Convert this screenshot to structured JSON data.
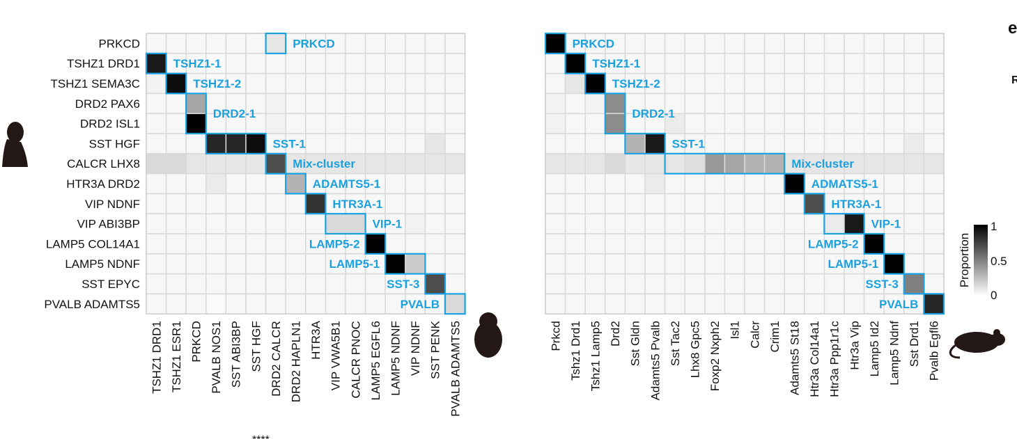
{
  "panel_letter": "e",
  "edge_letter": "R",
  "edge_stars": "****",
  "legend": {
    "title": "Proportion",
    "ticks": [
      "1",
      "0.5",
      "0"
    ]
  },
  "colors": {
    "cluster_box": "#1ba0e0",
    "grid": "#d9d9d9",
    "high": "#000000",
    "low": "#ffffff"
  },
  "icons": {
    "left_panel": "human-silhouette-icon",
    "middle": "monkey-silhouette-icon",
    "right_panel": "mouse-silhouette-icon"
  },
  "chart_data": [
    {
      "type": "heatmap",
      "scale": [
        0,
        1
      ],
      "rows": [
        "PRKCD",
        "TSHZ1 DRD1",
        "TSHZ1 SEMA3C",
        "DRD2 PAX6",
        "DRD2 ISL1",
        "SST HGF",
        "CALCR LHX8",
        "HTR3A DRD2",
        "VIP NDNF",
        "VIP ABI3BP",
        "LAMP5 COL14A1",
        "LAMP5 NDNF",
        "SST EPYC",
        "PVALB ADAMTS5"
      ],
      "columns": [
        "TSHZ1 DRD1",
        "TSHZ1 ESR1",
        "PRKCD",
        "PVALB NOS1",
        "SST ABI3BP",
        "SST HGF",
        "DRD2 CALCR",
        "DRD2 HAPLN1",
        "HTR3A",
        "VIP VWA5B1",
        "CALCR PNOC",
        "LAMP5 EGFL6",
        "LAMP5 NDNF",
        "VIP NDNF",
        "SST PENK",
        "PVALB ADAMTS5"
      ],
      "values": [
        [
          0,
          0,
          0,
          0,
          0,
          0,
          0.1,
          0,
          0,
          0,
          0,
          0,
          0,
          0,
          0,
          0
        ],
        [
          0.9,
          0.03,
          0.03,
          0.02,
          0,
          0,
          0,
          0,
          0,
          0,
          0,
          0,
          0,
          0,
          0,
          0
        ],
        [
          0.05,
          0.95,
          0.03,
          0.02,
          0,
          0,
          0,
          0,
          0,
          0,
          0,
          0,
          0,
          0,
          0,
          0
        ],
        [
          0,
          0,
          0.35,
          0,
          0,
          0,
          0.05,
          0,
          0,
          0,
          0,
          0,
          0,
          0,
          0,
          0
        ],
        [
          0,
          0,
          1,
          0,
          0,
          0,
          0.05,
          0,
          0,
          0,
          0,
          0,
          0,
          0,
          0,
          0
        ],
        [
          0,
          0,
          0,
          0.85,
          0.85,
          0.95,
          0,
          0,
          0,
          0,
          0,
          0,
          0,
          0,
          0.1,
          0
        ],
        [
          0.15,
          0.15,
          0.1,
          0.1,
          0.1,
          0.1,
          0.7,
          0.1,
          0.1,
          0.1,
          0.1,
          0.1,
          0.1,
          0.1,
          0.1,
          0.1
        ],
        [
          0,
          0,
          0,
          0.08,
          0,
          0,
          0,
          0.3,
          0,
          0,
          0,
          0,
          0,
          0,
          0,
          0
        ],
        [
          0,
          0,
          0,
          0,
          0,
          0,
          0,
          0,
          0.8,
          0,
          0,
          0,
          0,
          0,
          0,
          0
        ],
        [
          0,
          0,
          0,
          0,
          0,
          0,
          0,
          0,
          0,
          0.15,
          0.15,
          0,
          0,
          0.05,
          0,
          0
        ],
        [
          0,
          0,
          0,
          0,
          0,
          0,
          0,
          0,
          0,
          0,
          0,
          1,
          0,
          0,
          0,
          0
        ],
        [
          0,
          0,
          0,
          0,
          0,
          0,
          0,
          0,
          0,
          0,
          0,
          0,
          1,
          0.2,
          0,
          0
        ],
        [
          0,
          0,
          0,
          0,
          0.03,
          0,
          0,
          0,
          0,
          0,
          0,
          0,
          0,
          0,
          0.7,
          0
        ],
        [
          0,
          0,
          0,
          0.02,
          0,
          0,
          0,
          0,
          0,
          0,
          0,
          0,
          0,
          0,
          0,
          0.15
        ]
      ],
      "clusters": [
        {
          "label": "PRKCD",
          "r": [
            0,
            0
          ],
          "c": [
            6,
            6
          ]
        },
        {
          "label": "TSHZ1-1",
          "r": [
            1,
            1
          ],
          "c": [
            0,
            0
          ]
        },
        {
          "label": "TSHZ1-2",
          "r": [
            2,
            2
          ],
          "c": [
            1,
            1
          ]
        },
        {
          "label": "DRD2-1",
          "r": [
            3,
            4
          ],
          "c": [
            2,
            2
          ]
        },
        {
          "label": "SST-1",
          "r": [
            5,
            5
          ],
          "c": [
            3,
            5
          ]
        },
        {
          "label": "Mix-cluster",
          "r": [
            6,
            6
          ],
          "c": [
            6,
            6
          ]
        },
        {
          "label": "ADAMTS5-1",
          "r": [
            7,
            7
          ],
          "c": [
            7,
            7
          ]
        },
        {
          "label": "HTR3A-1",
          "r": [
            8,
            8
          ],
          "c": [
            8,
            8
          ]
        },
        {
          "label": "VIP-1",
          "r": [
            9,
            9
          ],
          "c": [
            9,
            10
          ]
        },
        {
          "label": "LAMP5-2",
          "r": [
            10,
            10
          ],
          "c": [
            11,
            11
          ]
        },
        {
          "label": "LAMP5-1",
          "r": [
            11,
            11
          ],
          "c": [
            12,
            13
          ]
        },
        {
          "label": "SST-3",
          "r": [
            12,
            12
          ],
          "c": [
            14,
            14
          ]
        },
        {
          "label": "PVALB",
          "r": [
            13,
            13
          ],
          "c": [
            15,
            15
          ]
        }
      ]
    },
    {
      "type": "heatmap",
      "scale": [
        0,
        1
      ],
      "rows": [
        "PRKCD",
        "TSHZ1 DRD1",
        "TSHZ1 SEMA3C",
        "DRD2 PAX6",
        "DRD2 ISL1",
        "SST HGF",
        "CALCR LHX8",
        "HTR3A DRD2",
        "VIP NDNF",
        "VIP ABI3BP",
        "LAMP5 COL14A1",
        "LAMP5 NDNF",
        "SST EPYC",
        "PVALB ADAMTS5"
      ],
      "columns": [
        "Prkcd",
        "Tshz1 Drd1",
        "Tshz1 Lamp5",
        "Drd2",
        "Sst Gldn",
        "Adamts5 Pvalb",
        "Sst Tac2",
        "Lhx8 Gpc5",
        "Foxp2 Nxph2",
        "Isl1",
        "Calcr",
        "Crim1",
        "Adamts5 St18",
        "Htr3a Col14a1",
        "Htr3a Ppp1r1c",
        "Htr3a Vip",
        "Lamp5 Id2",
        "Lamp5 Ndnf",
        "Sst Drd1",
        "Pvalb Egfl6"
      ],
      "values": [
        [
          1,
          0,
          0,
          0,
          0,
          0,
          0,
          0,
          0,
          0,
          0,
          0,
          0,
          0,
          0,
          0,
          0,
          0,
          0,
          0
        ],
        [
          0,
          1,
          0,
          0,
          0,
          0,
          0,
          0,
          0,
          0,
          0,
          0,
          0,
          0,
          0,
          0,
          0,
          0,
          0,
          0
        ],
        [
          0,
          0.1,
          1,
          0,
          0,
          0,
          0,
          0,
          0,
          0,
          0,
          0,
          0,
          0,
          0,
          0,
          0,
          0,
          0,
          0
        ],
        [
          0.05,
          0.03,
          0.05,
          0.45,
          0,
          0,
          0,
          0,
          0,
          0,
          0,
          0,
          0,
          0,
          0,
          0,
          0,
          0,
          0,
          0
        ],
        [
          0.05,
          0.03,
          0.03,
          0.45,
          0,
          0,
          0.08,
          0,
          0,
          0,
          0,
          0,
          0,
          0,
          0,
          0,
          0,
          0,
          0,
          0
        ],
        [
          0,
          0,
          0,
          0,
          0.3,
          0.9,
          0,
          0,
          0,
          0,
          0,
          0,
          0,
          0,
          0,
          0,
          0,
          0,
          0.08,
          0
        ],
        [
          0.1,
          0.1,
          0.1,
          0.15,
          0.1,
          0.1,
          0.1,
          0.12,
          0.4,
          0.35,
          0.3,
          0.3,
          0.1,
          0.1,
          0.1,
          0.1,
          0.1,
          0.1,
          0.1,
          0.1
        ],
        [
          0,
          0,
          0,
          0,
          0,
          0.08,
          0,
          0,
          0,
          0,
          0,
          0,
          1,
          0,
          0,
          0,
          0,
          0,
          0,
          0
        ],
        [
          0,
          0,
          0,
          0,
          0,
          0,
          0,
          0,
          0,
          0,
          0,
          0,
          0,
          0.7,
          0,
          0,
          0,
          0,
          0,
          0
        ],
        [
          0,
          0,
          0,
          0,
          0,
          0,
          0,
          0,
          0,
          0,
          0,
          0,
          0,
          0,
          0.08,
          0.9,
          0,
          0,
          0,
          0
        ],
        [
          0,
          0,
          0,
          0,
          0,
          0,
          0,
          0,
          0,
          0,
          0,
          0,
          0,
          0,
          0,
          0,
          1,
          0,
          0,
          0
        ],
        [
          0,
          0,
          0,
          0,
          0,
          0,
          0,
          0,
          0,
          0,
          0,
          0,
          0,
          0,
          0,
          0,
          0,
          1,
          0,
          0
        ],
        [
          0,
          0,
          0,
          0,
          0.03,
          0,
          0,
          0,
          0,
          0,
          0,
          0,
          0,
          0,
          0,
          0,
          0,
          0,
          0.5,
          0
        ],
        [
          0,
          0,
          0,
          0,
          0,
          0,
          0,
          0,
          0,
          0,
          0,
          0,
          0,
          0,
          0,
          0,
          0,
          0,
          0,
          0.85
        ]
      ],
      "clusters": [
        {
          "label": "PRKCD",
          "r": [
            0,
            0
          ],
          "c": [
            0,
            0
          ]
        },
        {
          "label": "TSHZ1-1",
          "r": [
            1,
            1
          ],
          "c": [
            1,
            1
          ]
        },
        {
          "label": "TSHZ1-2",
          "r": [
            2,
            2
          ],
          "c": [
            2,
            2
          ]
        },
        {
          "label": "DRD2-1",
          "r": [
            3,
            4
          ],
          "c": [
            3,
            3
          ]
        },
        {
          "label": "SST-1",
          "r": [
            5,
            5
          ],
          "c": [
            4,
            5
          ]
        },
        {
          "label": "Mix-cluster",
          "r": [
            6,
            6
          ],
          "c": [
            6,
            11
          ]
        },
        {
          "label": "ADMATS5-1",
          "r": [
            7,
            7
          ],
          "c": [
            12,
            12
          ]
        },
        {
          "label": "HTR3A-1",
          "r": [
            8,
            8
          ],
          "c": [
            13,
            13
          ]
        },
        {
          "label": "VIP-1",
          "r": [
            9,
            9
          ],
          "c": [
            14,
            15
          ]
        },
        {
          "label": "LAMP5-2",
          "r": [
            10,
            10
          ],
          "c": [
            16,
            16
          ]
        },
        {
          "label": "LAMP5-1",
          "r": [
            11,
            11
          ],
          "c": [
            17,
            17
          ]
        },
        {
          "label": "SST-3",
          "r": [
            12,
            12
          ],
          "c": [
            18,
            18
          ]
        },
        {
          "label": "PVALB",
          "r": [
            13,
            13
          ],
          "c": [
            19,
            19
          ]
        }
      ]
    }
  ]
}
